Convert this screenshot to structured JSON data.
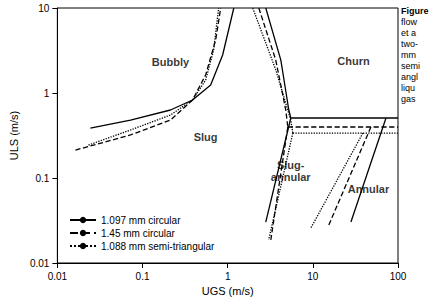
{
  "chart_data": {
    "type": "line",
    "x_label": "UGS (m/s)",
    "y_label": "ULS (m/s)",
    "log": true,
    "grid": false,
    "legend": "lower left",
    "xlim": [
      0.01,
      100
    ],
    "ylim": [
      0.01,
      10
    ],
    "xticks": [
      0.01,
      0.1,
      1,
      10,
      100
    ],
    "yticks": [
      0.01,
      0.1,
      1,
      10
    ],
    "series": [
      {
        "name": "1.097 mm circular",
        "color": "#000000",
        "line_style": "solid",
        "lines": [
          {
            "x": [
              0.0244,
              0.0723,
              0.213,
              0.387,
              0.631,
              0.873,
              1.18
            ],
            "y": [
              0.387,
              0.481,
              0.631,
              0.828,
              1.24,
              2.8,
              10
            ]
          },
          {
            "x": [
              2.8,
              4.21,
              5.22,
              5.51
            ],
            "y": [
              10,
              2.44,
              0.631,
              0.508
            ]
          },
          {
            "x": [
              5.51,
              100
            ],
            "y": [
              0.508,
              0.508
            ]
          },
          {
            "x": [
              5.51,
              2.8
            ],
            "y": [
              0.508,
              0.0303
            ]
          },
          {
            "x": [
              72.3,
              28.0
            ],
            "y": [
              0.508,
              0.0303
            ]
          }
        ]
      },
      {
        "name": "1.45 mm circular",
        "color": "#000000",
        "line_style": "dashed",
        "lines": [
          {
            "x": [
              0.0163,
              0.0723,
              0.213,
              0.387,
              0.551,
              0.723,
              0.828
            ],
            "y": [
              0.213,
              0.321,
              0.481,
              0.828,
              1.63,
              4.21,
              10
            ]
          },
          {
            "x": [
              2.32,
              3.67,
              4.81,
              5.08
            ],
            "y": [
              10,
              2.44,
              0.631,
              0.398
            ]
          },
          {
            "x": [
              5.08,
              100
            ],
            "y": [
              0.398,
              0.398
            ]
          },
          {
            "x": [
              5.08,
              3.21
            ],
            "y": [
              0.398,
              0.0187
            ]
          },
          {
            "x": [
              48.1,
              15.4
            ],
            "y": [
              0.398,
              0.028
            ]
          }
        ]
      },
      {
        "name": "1.088 mm semi-triangular",
        "color": "#000000",
        "line_style": "dotted",
        "lines": [
          {
            "x": [
              0.0232,
              0.0723,
              0.213,
              0.387,
              0.551,
              0.684,
              0.783
            ],
            "y": [
              0.244,
              0.367,
              0.551,
              0.828,
              1.42,
              3.21,
              10
            ]
          },
          {
            "x": [
              1.97,
              3.67,
              5.51,
              5.82
            ],
            "y": [
              10,
              1.87,
              0.481,
              0.338
            ]
          },
          {
            "x": [
              5.82,
              100
            ],
            "y": [
              0.338,
              0.338
            ]
          },
          {
            "x": [
              5.82,
              3.03
            ],
            "y": [
              0.338,
              0.0187
            ]
          },
          {
            "x": [
              38.7,
              9.47
            ],
            "y": [
              0.338,
              0.0258
            ]
          }
        ]
      }
    ],
    "annotations": [
      {
        "text": "Bubbly",
        "x": 0.213,
        "y": 2.3
      },
      {
        "text": "Slug",
        "x": 0.55,
        "y": 0.3
      },
      {
        "text": "Churn",
        "x": 30,
        "y": 2.4
      },
      {
        "text": "Slug-\nannular",
        "x": 5.5,
        "y": 0.12
      },
      {
        "text": "Annular",
        "x": 45,
        "y": 0.075
      }
    ],
    "caption_lines": [
      "Figure",
      "flow",
      "et a",
      "two-",
      "mm",
      "semi",
      "angl",
      "liqu",
      "gas"
    ]
  }
}
